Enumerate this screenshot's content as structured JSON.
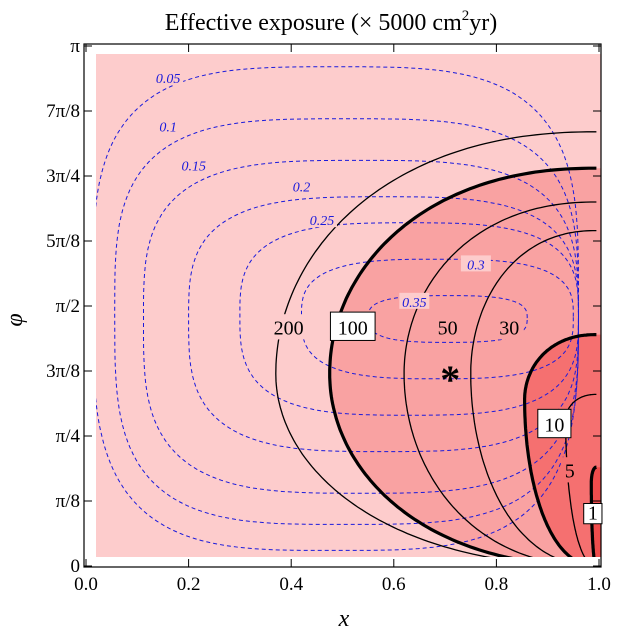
{
  "chart_data": {
    "type": "contour",
    "title_main": "Effective exposure (× 5000 cm",
    "title_sup": "2",
    "title_end": "yr)",
    "xlabel": "x",
    "ylabel": "φ",
    "xlim": [
      0,
      1
    ],
    "ylim_pi_fraction": [
      0,
      1
    ],
    "x_ticks": [
      {
        "value": 0.0,
        "label": "0.0"
      },
      {
        "value": 0.2,
        "label": "0.2"
      },
      {
        "value": 0.4,
        "label": "0.4"
      },
      {
        "value": 0.6,
        "label": "0.6"
      },
      {
        "value": 0.8,
        "label": "0.8"
      },
      {
        "value": 1.0,
        "label": "1.0"
      }
    ],
    "y_ticks": [
      {
        "value": 0,
        "label": "0"
      },
      {
        "value": 0.125,
        "label": "π/8"
      },
      {
        "value": 0.25,
        "label": "π/4"
      },
      {
        "value": 0.375,
        "label": "3π/8"
      },
      {
        "value": 0.5,
        "label": "π/2"
      },
      {
        "value": 0.625,
        "label": "5π/8"
      },
      {
        "value": 0.75,
        "label": "3π/4"
      },
      {
        "value": 0.875,
        "label": "7π/8"
      },
      {
        "value": 1.0,
        "label": "π"
      }
    ],
    "dashed_contours": {
      "color": "#1a1adb",
      "levels": [
        "0.05",
        "0.1",
        "0.15",
        "0.2",
        "0.25",
        "0.3",
        "0.35"
      ],
      "label_positions": [
        {
          "text": "0.05",
          "x": 0.16,
          "y": 0.938
        },
        {
          "text": "0.1",
          "x": 0.16,
          "y": 0.845
        },
        {
          "text": "0.15",
          "x": 0.21,
          "y": 0.77
        },
        {
          "text": "0.2",
          "x": 0.42,
          "y": 0.73
        },
        {
          "text": "0.25",
          "x": 0.46,
          "y": 0.665
        },
        {
          "text": "0.3",
          "x": 0.76,
          "y": 0.58
        },
        {
          "text": "0.35",
          "x": 0.64,
          "y": 0.508
        }
      ]
    },
    "solid_contours": {
      "color": "#000000",
      "levels": [
        "200",
        "100",
        "50",
        "30",
        "10",
        "5",
        "1"
      ],
      "bold_levels": [
        "100",
        "10",
        "1"
      ],
      "label_positions": [
        {
          "text": "200",
          "x": 0.395,
          "y": 0.46,
          "boxed": false
        },
        {
          "text": "100",
          "x": 0.52,
          "y": 0.46,
          "boxed": true
        },
        {
          "text": "50",
          "x": 0.705,
          "y": 0.46,
          "boxed": false
        },
        {
          "text": "30",
          "x": 0.825,
          "y": 0.46,
          "boxed": false
        },
        {
          "text": "10",
          "x": 0.913,
          "y": 0.273,
          "boxed": true
        },
        {
          "text": "5",
          "x": 0.943,
          "y": 0.185,
          "boxed": false
        },
        {
          "text": "1",
          "x": 0.988,
          "y": 0.1,
          "boxed": true
        }
      ]
    },
    "fill_regions": [
      {
        "range": "≥100",
        "color": "#fdcccc"
      },
      {
        "range": "10–100",
        "color": "#f9a2a2"
      },
      {
        "range": "1–10",
        "color": "#f57070"
      },
      {
        "range": "<1",
        "color": "#ef4c4c"
      }
    ],
    "marker": {
      "symbol": "*",
      "x": 0.71,
      "y": 0.375
    }
  }
}
